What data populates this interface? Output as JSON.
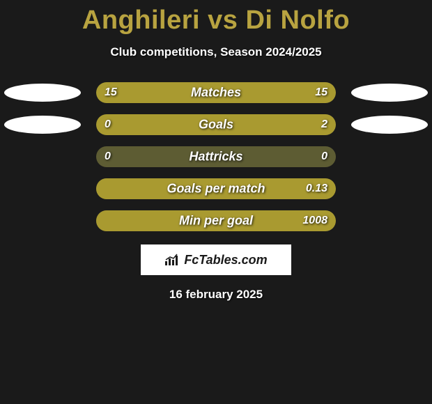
{
  "title": "Anghileri vs Di Nolfo",
  "subtitle": "Club competitions, Season 2024/2025",
  "colors": {
    "background": "#1a1a1a",
    "accent": "#b8a340",
    "bar_fill": "#a99a30",
    "bar_track": "#5d5c33",
    "text": "#ffffff",
    "ellipse": "#ffffff"
  },
  "stats": [
    {
      "label": "Matches",
      "left_val": "15",
      "right_val": "15",
      "left_pct": 50,
      "right_pct": 50,
      "show_left_ellipse": true,
      "show_right_ellipse": true
    },
    {
      "label": "Goals",
      "left_val": "0",
      "right_val": "2",
      "left_pct": 18,
      "right_pct": 82,
      "show_left_ellipse": true,
      "show_right_ellipse": true
    },
    {
      "label": "Hattricks",
      "left_val": "0",
      "right_val": "0",
      "left_pct": 0,
      "right_pct": 0,
      "show_left_ellipse": false,
      "show_right_ellipse": false
    },
    {
      "label": "Goals per match",
      "left_val": "",
      "right_val": "0.13",
      "left_pct": 0,
      "right_pct": 100,
      "show_left_ellipse": false,
      "show_right_ellipse": false
    },
    {
      "label": "Min per goal",
      "left_val": "",
      "right_val": "1008",
      "left_pct": 0,
      "right_pct": 100,
      "show_left_ellipse": false,
      "show_right_ellipse": false
    }
  ],
  "branding": "FcTables.com",
  "datestamp": "16 february 2025"
}
